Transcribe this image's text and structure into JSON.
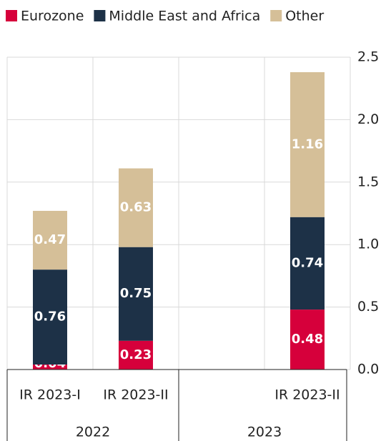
{
  "chart_data": {
    "type": "stacked_bar",
    "categories": [
      "IR 2023-I",
      "IR 2023-II",
      null,
      "IR 2023-II"
    ],
    "groups": [
      "2022",
      "2023"
    ],
    "series": [
      {
        "name": "Eurozone",
        "color": "#d6003b",
        "values": [
          0.04,
          0.23,
          null,
          0.48
        ]
      },
      {
        "name": "Middle East and Africa",
        "color": "#1d3147",
        "values": [
          0.76,
          0.75,
          null,
          0.74
        ]
      },
      {
        "name": "Other",
        "color": "#d5bf98",
        "values": [
          0.47,
          0.63,
          null,
          1.16
        ]
      }
    ],
    "ylim": [
      0,
      2.5
    ],
    "yticks": [
      {
        "value": 0,
        "label": "0.0"
      },
      {
        "value": 0.5,
        "label": "0.5"
      },
      {
        "value": 1,
        "label": "1.0"
      },
      {
        "value": 1.5,
        "label": "1.5"
      },
      {
        "value": 2,
        "label": "2.0"
      },
      {
        "value": 2.5,
        "label": "2.5"
      }
    ],
    "grid": true,
    "legend": "top"
  }
}
